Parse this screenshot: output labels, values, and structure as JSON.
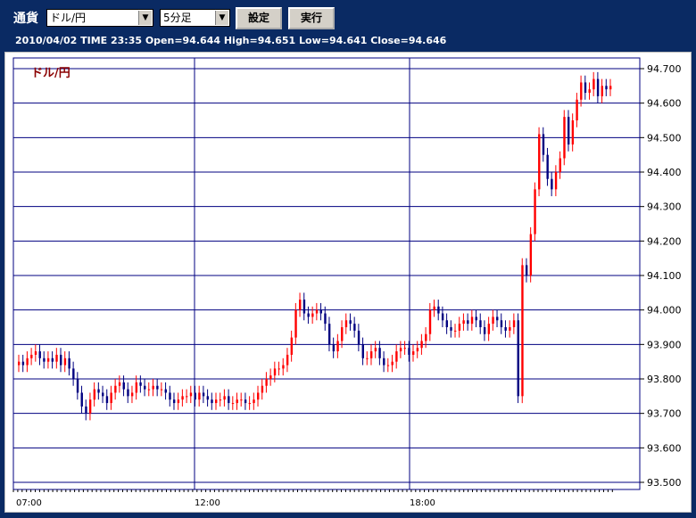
{
  "toolbar": {
    "currency_label": "通貨",
    "pair_value": "ドル/円",
    "interval_value": "5分足",
    "set_button": "設定",
    "run_button": "実行"
  },
  "infobar": {
    "text": "2010/04/02  TIME 23:35  Open=94.644  High=94.651  Low=94.641  Close=94.646"
  },
  "colors": {
    "up": "#ff0000",
    "down": "#000080",
    "grid": "#000080",
    "background": "#0a2a63"
  },
  "chart_data": {
    "type": "candlestick",
    "title": "ドル/円",
    "xlabel": "",
    "ylabel": "",
    "ylim": [
      93.5,
      94.7
    ],
    "yticks": [
      "93.500",
      "93.600",
      "93.700",
      "93.800",
      "93.900",
      "94.000",
      "94.100",
      "94.200",
      "94.300",
      "94.400",
      "94.500",
      "94.600",
      "94.700"
    ],
    "xticks": [
      "07:00",
      "12:00",
      "18:00"
    ],
    "grid": true,
    "series": [
      {
        "name": "close",
        "values": [
          93.85,
          93.84,
          93.86,
          93.87,
          93.88,
          93.86,
          93.85,
          93.86,
          93.85,
          93.87,
          93.84,
          93.86,
          93.83,
          93.8,
          93.76,
          93.72,
          93.7,
          93.74,
          93.77,
          93.76,
          93.75,
          93.73,
          93.76,
          93.78,
          93.79,
          93.77,
          93.75,
          93.76,
          93.79,
          93.78,
          93.77,
          93.77,
          93.78,
          93.77,
          93.77,
          93.76,
          93.74,
          93.73,
          93.74,
          93.75,
          93.75,
          93.76,
          93.74,
          93.76,
          93.75,
          93.74,
          93.73,
          93.74,
          93.74,
          93.75,
          93.73,
          93.73,
          93.74,
          93.74,
          93.73,
          93.73,
          93.74,
          93.76,
          93.78,
          93.8,
          93.81,
          93.83,
          93.83,
          93.84,
          93.87,
          93.92,
          94.0,
          94.03,
          93.99,
          93.98,
          93.99,
          94.0,
          93.99,
          93.96,
          93.9,
          93.88,
          93.91,
          93.95,
          93.97,
          93.96,
          93.94,
          93.9,
          93.86,
          93.86,
          93.88,
          93.89,
          93.86,
          93.84,
          93.84,
          93.85,
          93.88,
          93.89,
          93.89,
          93.87,
          93.88,
          93.89,
          93.91,
          93.93,
          94.0,
          94.01,
          93.99,
          93.97,
          93.95,
          93.94,
          93.94,
          93.96,
          93.97,
          93.96,
          93.98,
          93.97,
          93.95,
          93.93,
          93.96,
          93.98,
          93.97,
          93.95,
          93.94,
          93.95,
          93.97,
          93.75,
          94.13,
          94.1,
          94.22,
          94.35,
          94.51,
          94.45,
          94.38,
          94.35,
          94.4,
          94.44,
          94.56,
          94.48,
          94.55,
          94.61,
          94.66,
          94.63,
          94.64,
          94.67,
          94.62,
          94.65,
          94.64,
          94.65
        ]
      }
    ]
  }
}
